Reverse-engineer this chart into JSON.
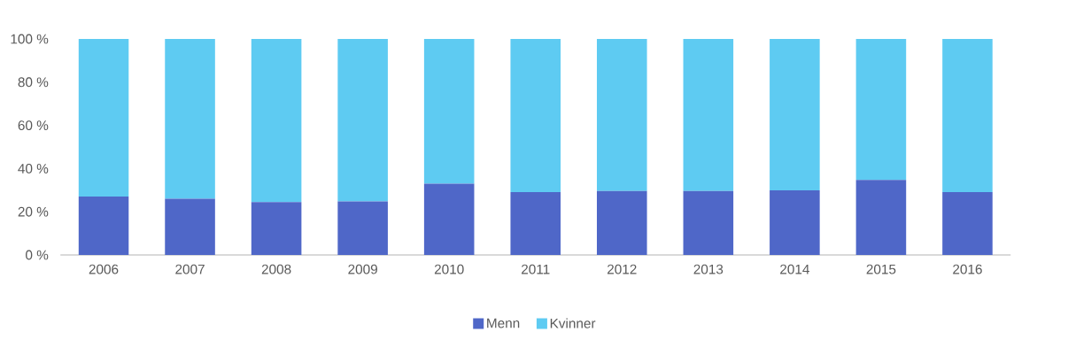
{
  "chart_data": {
    "type": "bar",
    "stacked": true,
    "categories": [
      "2006",
      "2007",
      "2008",
      "2009",
      "2010",
      "2011",
      "2012",
      "2013",
      "2014",
      "2015",
      "2016"
    ],
    "series": [
      {
        "name": "Menn",
        "color": "#4f67c8",
        "values": [
          27.1,
          26.0,
          24.5,
          24.8,
          33.0,
          29.1,
          29.6,
          29.6,
          29.9,
          34.7,
          29.1
        ]
      },
      {
        "name": "Kvinner",
        "color": "#5ecbf2",
        "values": [
          72.9,
          74.0,
          75.5,
          75.2,
          67.0,
          70.9,
          70.4,
          70.4,
          70.1,
          65.3,
          70.9
        ]
      }
    ],
    "ylim": [
      0,
      100
    ],
    "yticks": [
      {
        "value": 0,
        "label": "0 %"
      },
      {
        "value": 20,
        "label": "20 %"
      },
      {
        "value": 40,
        "label": "40 %"
      },
      {
        "value": 60,
        "label": "60 %"
      },
      {
        "value": 80,
        "label": "80 %"
      },
      {
        "value": 100,
        "label": "100 %"
      }
    ],
    "legend": "bottom"
  }
}
